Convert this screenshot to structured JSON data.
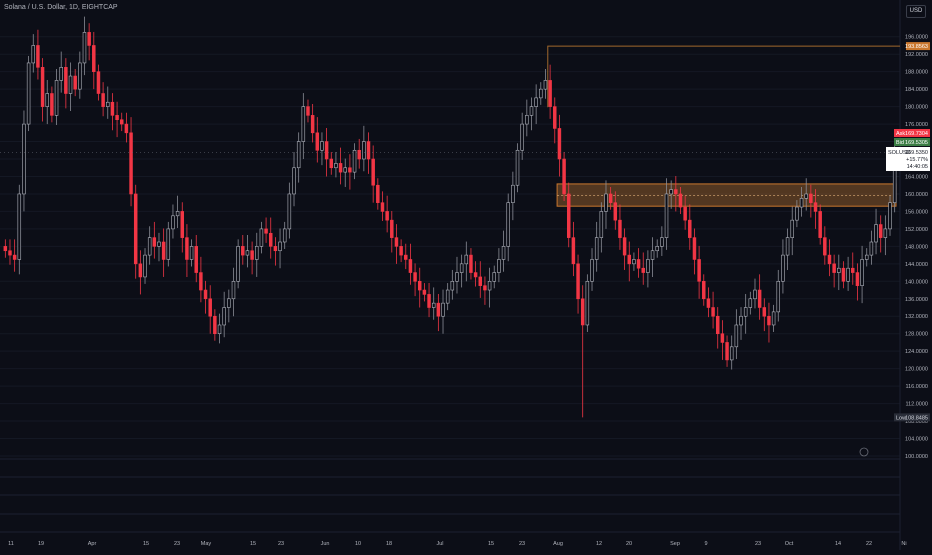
{
  "header": {
    "title": "Solana / U.S. Dollar, 1D, EIGHTCAP",
    "currency_button": "USD"
  },
  "colors": {
    "background": "#0c0e17",
    "bear": "#f23645",
    "bull_outline": "#b2b5be",
    "zone_fill": "#8c5a2a",
    "zone_border": "#c9772e",
    "resistance_line": "#a0672d",
    "ask_badge": "#f23645",
    "bid_badge": "#3a7d44",
    "resistance_badge": "#c9772e"
  },
  "price_scale": {
    "labels": [
      "196.0000",
      "192.0000",
      "188.0000",
      "184.0000",
      "180.0000",
      "176.0000",
      "172.0000",
      "168.0000",
      "164.0000",
      "160.0000",
      "156.0000",
      "152.0000",
      "148.0000",
      "144.0000",
      "140.0000",
      "136.0000",
      "132.0000",
      "128.0000",
      "124.0000",
      "120.0000",
      "116.0000",
      "112.0000",
      "108.0000",
      "104.0000",
      "100.0000"
    ],
    "resistance_label": "193.8563",
    "ask_tag": "Ask",
    "ask_value": "169.7304",
    "bid_tag": "Bid",
    "bid_value": "169.5305",
    "symbol_tag": "SOLUSD",
    "symbol_price": "169.5350",
    "symbol_change": "+15.77%",
    "symbol_countdown": "14:40:05",
    "low_tag": "Low",
    "low_value": "108.8485"
  },
  "time_axis": {
    "labels": [
      "11",
      "19",
      "Apr",
      "15",
      "23",
      "May",
      "15",
      "23",
      "Jun",
      "10",
      "18",
      "Jul",
      "15",
      "23",
      "Aug",
      "12",
      "20",
      "Sep",
      "9",
      "23",
      "Oct",
      "14",
      "22",
      "Ni"
    ]
  },
  "chart_data": {
    "type": "candlestick",
    "symbol": "SOLUSD",
    "interval": "1D",
    "ylim": [
      100,
      198
    ],
    "y_ticks": [
      196,
      192,
      188,
      184,
      180,
      176,
      172,
      168,
      164,
      160,
      156,
      152,
      148,
      144,
      140,
      136,
      132,
      128,
      124,
      120,
      116,
      112,
      108,
      104,
      100
    ],
    "resistance_level": 193.8563,
    "zone": {
      "low": 157.2,
      "high": 162.3,
      "mid": 159.7
    },
    "period_low": 108.8485,
    "last_price": 169.535,
    "closes": [
      147,
      146,
      145,
      160,
      176,
      190,
      194,
      189,
      180,
      183,
      178,
      186,
      189,
      183,
      187,
      184,
      190,
      197,
      194,
      188,
      183,
      180,
      181,
      178,
      177,
      176,
      174,
      160,
      144,
      141,
      146,
      150,
      148,
      149,
      145,
      152,
      155,
      156,
      150,
      145,
      148,
      142,
      138,
      136,
      132,
      128,
      130,
      134,
      136,
      140,
      148,
      146,
      147,
      145,
      148,
      152,
      151,
      148,
      147,
      149,
      152,
      160,
      166,
      172,
      180,
      178,
      174,
      170,
      172,
      168,
      166,
      167,
      165,
      166,
      165,
      170,
      168,
      172,
      168,
      162,
      158,
      156,
      154,
      150,
      148,
      146,
      145,
      142,
      140,
      138,
      137,
      134,
      135,
      132,
      135,
      138,
      140,
      142,
      144,
      146,
      142,
      141,
      139,
      138,
      140,
      142,
      145,
      148,
      158,
      162,
      170,
      176,
      178,
      180,
      182,
      184,
      186,
      180,
      175,
      168,
      160,
      150,
      144,
      136,
      130,
      140,
      145,
      150,
      156,
      160,
      158,
      154,
      150,
      146,
      144,
      145,
      143,
      142,
      145,
      147,
      148,
      150,
      160,
      161,
      160,
      157,
      154,
      150,
      145,
      140,
      136,
      134,
      132,
      128,
      126,
      122,
      125,
      130,
      132,
      134,
      136,
      138,
      134,
      132,
      130,
      133,
      140,
      146,
      150,
      154,
      157,
      159,
      160,
      158,
      156,
      150,
      146,
      144,
      142,
      143,
      140,
      143,
      142,
      139,
      145,
      146,
      149,
      153,
      150,
      152,
      158,
      170
    ]
  }
}
